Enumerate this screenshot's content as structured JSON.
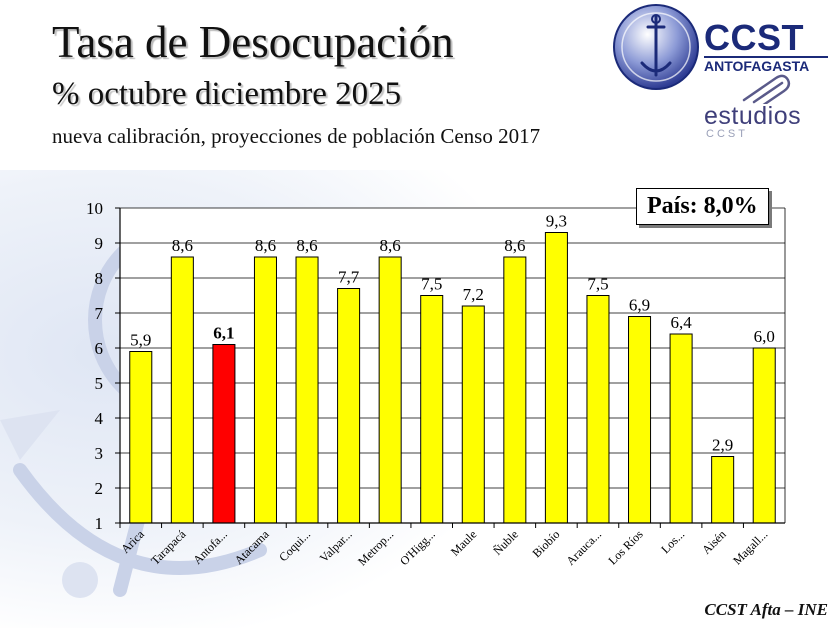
{
  "title": "Tasa de Desocupación",
  "subtitle": "%  octubre diciembre 2025",
  "note": "nueva calibración, proyecciones de población Censo 2017",
  "logo": {
    "brand": "CCST",
    "city": "ANTOFAGASTA",
    "studies": "estudios",
    "studies_sub": "CCST"
  },
  "national_box": "País: 8,0%",
  "footer": "CCST Afta – INE",
  "chart_data": {
    "type": "bar",
    "categories": [
      "Arica",
      "Tarapacá",
      "Antofa...",
      "Atacama",
      "Coqui...",
      "Valpar...",
      "Metrop...",
      "O'Higg...",
      "Maule",
      "Ñuble",
      "Biobío",
      "Arauca...",
      "Los Ríos",
      "Los...",
      "Aisén",
      "Magall..."
    ],
    "values": [
      5.9,
      8.6,
      6.1,
      8.6,
      8.6,
      7.7,
      8.6,
      7.5,
      7.2,
      8.6,
      9.3,
      7.5,
      6.9,
      6.4,
      2.9,
      6.0
    ],
    "data_labels": [
      "5,9",
      "8,6",
      "6,1",
      "8,6",
      "8,6",
      "7,7",
      "8,6",
      "7,5",
      "7,2",
      "8,6",
      "9,3",
      "7,5",
      "6,9",
      "6,4",
      "2,9",
      "6,0"
    ],
    "highlight_index": 2,
    "ylim": [
      1,
      10
    ],
    "yticks": [
      "1",
      "2",
      "3",
      "4",
      "5",
      "6",
      "7",
      "8",
      "9",
      "10"
    ],
    "grid": true,
    "colors": {
      "bar": "#ffff00",
      "highlight": "#ff0000",
      "axis": "#000000",
      "grid": "#000000"
    }
  }
}
